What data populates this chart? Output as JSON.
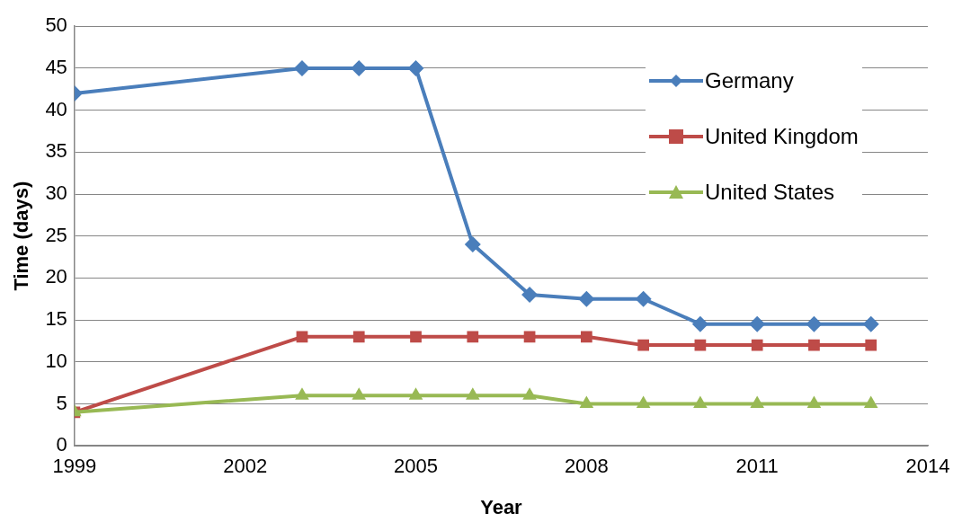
{
  "chart_data": {
    "type": "line",
    "xlabel": "Year",
    "ylabel": "Time (days)",
    "xlim": [
      1999,
      2014
    ],
    "xticks": [
      1999,
      2002,
      2005,
      2008,
      2011,
      2014
    ],
    "ylim": [
      0,
      50
    ],
    "yticks": [
      0,
      5,
      10,
      15,
      20,
      25,
      30,
      35,
      40,
      45,
      50
    ],
    "grid": "y",
    "legend": "top right",
    "x": [
      1999,
      2003,
      2004,
      2005,
      2006,
      2007,
      2008,
      2009,
      2010,
      2011,
      2012,
      2013
    ],
    "series": [
      {
        "name": "Germany",
        "color": "#4a7ebb",
        "marker": "diamond",
        "values": [
          42,
          45,
          45,
          45,
          24,
          18,
          17.5,
          17.5,
          14.5,
          14.5,
          14.5,
          14.5
        ]
      },
      {
        "name": "United Kingdom",
        "color": "#be4b48",
        "marker": "square",
        "values": [
          4,
          13,
          13,
          13,
          13,
          13,
          13,
          12,
          12,
          12,
          12,
          12
        ]
      },
      {
        "name": "United States",
        "color": "#98b954",
        "marker": "triangle",
        "values": [
          4,
          6,
          6,
          6,
          6,
          6,
          5,
          5,
          5,
          5,
          5,
          5
        ]
      }
    ]
  }
}
